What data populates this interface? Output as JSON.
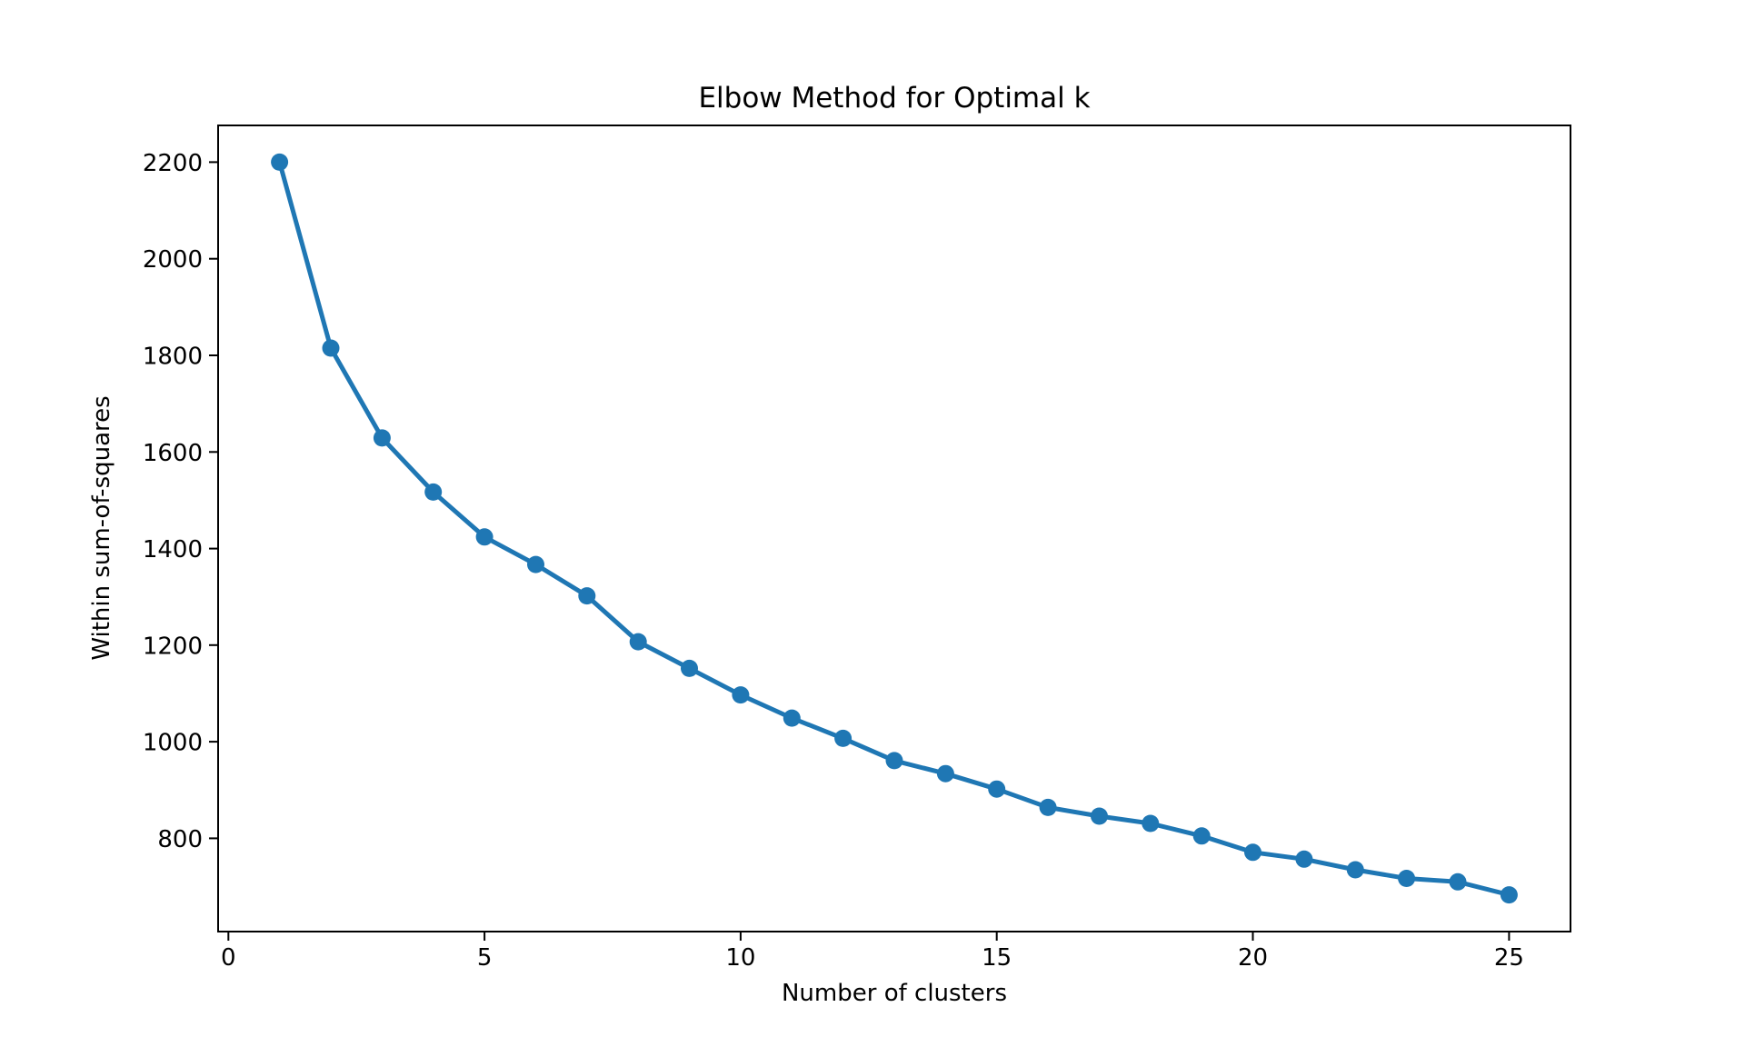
{
  "figure": {
    "background": "#ffffff"
  },
  "chart_data": {
    "type": "line",
    "title": "Elbow Method for Optimal k",
    "xlabel": "Number of clusters",
    "ylabel": "Within sum-of-squares",
    "x": [
      1,
      2,
      3,
      4,
      5,
      6,
      7,
      8,
      9,
      10,
      11,
      12,
      13,
      14,
      15,
      16,
      17,
      18,
      19,
      20,
      21,
      22,
      23,
      24,
      25
    ],
    "y": [
      2200,
      1815,
      1629,
      1517,
      1424,
      1367,
      1302,
      1207,
      1152,
      1097,
      1049,
      1007,
      961,
      934,
      902,
      864,
      846,
      831,
      805,
      771,
      757,
      735,
      717,
      710,
      683
    ],
    "xlim": [
      -0.2,
      26.2
    ],
    "ylim": [
      607,
      2276
    ],
    "xticks": [
      0,
      5,
      10,
      15,
      20,
      25
    ],
    "yticks": [
      800,
      1000,
      1200,
      1400,
      1600,
      1800,
      2000,
      2200
    ],
    "grid": false,
    "legend": false,
    "marker": "circle",
    "line_color": "#1f77b4",
    "marker_color": "#1f77b4",
    "axis_color": "#000000",
    "text_color": "#000000",
    "background": "#ffffff"
  }
}
